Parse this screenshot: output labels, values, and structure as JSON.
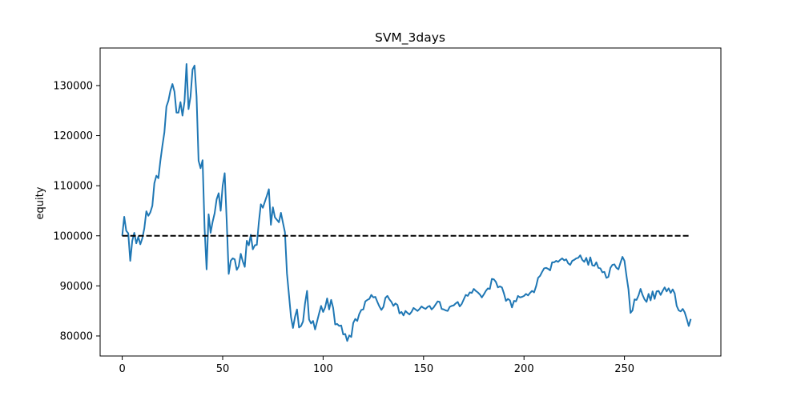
{
  "chart_data": {
    "type": "line",
    "title": "SVM_3days",
    "xlabel": "",
    "ylabel": "equity",
    "xlim": [
      -11,
      298
    ],
    "ylim": [
      76000,
      137500
    ],
    "xticks": [
      0,
      50,
      100,
      150,
      200,
      250
    ],
    "yticks": [
      80000,
      90000,
      100000,
      110000,
      120000,
      130000
    ],
    "grid": false,
    "legend": "none",
    "series": [
      {
        "color": "#1f77b4",
        "style": "solid",
        "points": [
          [
            0,
            100000
          ],
          [
            1,
            103800
          ],
          [
            2,
            101000
          ],
          [
            3,
            100500
          ],
          [
            4,
            95000
          ],
          [
            5,
            99000
          ],
          [
            6,
            100600
          ],
          [
            7,
            98500
          ],
          [
            8,
            99800
          ],
          [
            9,
            98300
          ],
          [
            10,
            99500
          ],
          [
            11,
            101500
          ],
          [
            12,
            104900
          ],
          [
            13,
            104000
          ],
          [
            14,
            104700
          ],
          [
            15,
            106000
          ],
          [
            16,
            110500
          ],
          [
            17,
            112000
          ],
          [
            18,
            111500
          ],
          [
            19,
            115000
          ],
          [
            20,
            118000
          ],
          [
            21,
            120700
          ],
          [
            22,
            125800
          ],
          [
            23,
            127000
          ],
          [
            24,
            129000
          ],
          [
            25,
            130300
          ],
          [
            26,
            128800
          ],
          [
            27,
            124600
          ],
          [
            28,
            124600
          ],
          [
            29,
            126700
          ],
          [
            30,
            124000
          ],
          [
            31,
            126800
          ],
          [
            32,
            134300
          ],
          [
            33,
            125300
          ],
          [
            34,
            127800
          ],
          [
            35,
            133200
          ],
          [
            36,
            134000
          ],
          [
            37,
            127800
          ],
          [
            38,
            115000
          ],
          [
            39,
            113500
          ],
          [
            40,
            115100
          ],
          [
            41,
            101500
          ],
          [
            42,
            93300
          ],
          [
            43,
            104300
          ],
          [
            44,
            100600
          ],
          [
            45,
            102800
          ],
          [
            46,
            104500
          ],
          [
            47,
            107300
          ],
          [
            48,
            108500
          ],
          [
            49,
            105000
          ],
          [
            50,
            110000
          ],
          [
            51,
            112500
          ],
          [
            52,
            103000
          ],
          [
            53,
            92400
          ],
          [
            54,
            95000
          ],
          [
            55,
            95500
          ],
          [
            56,
            95300
          ],
          [
            57,
            93200
          ],
          [
            58,
            93900
          ],
          [
            59,
            96400
          ],
          [
            60,
            94900
          ],
          [
            61,
            93800
          ],
          [
            62,
            99000
          ],
          [
            63,
            98100
          ],
          [
            64,
            100200
          ],
          [
            65,
            97300
          ],
          [
            66,
            98100
          ],
          [
            67,
            98200
          ],
          [
            68,
            102700
          ],
          [
            69,
            106300
          ],
          [
            70,
            105600
          ],
          [
            71,
            106800
          ],
          [
            72,
            108000
          ],
          [
            73,
            109300
          ],
          [
            74,
            102200
          ],
          [
            75,
            105700
          ],
          [
            76,
            103700
          ],
          [
            77,
            103200
          ],
          [
            78,
            102700
          ],
          [
            79,
            104600
          ],
          [
            80,
            102600
          ],
          [
            81,
            100700
          ],
          [
            82,
            92500
          ],
          [
            83,
            88200
          ],
          [
            84,
            83800
          ],
          [
            85,
            81600
          ],
          [
            86,
            83800
          ],
          [
            87,
            85300
          ],
          [
            88,
            81700
          ],
          [
            89,
            82000
          ],
          [
            90,
            82900
          ],
          [
            91,
            86500
          ],
          [
            92,
            89000
          ],
          [
            93,
            83300
          ],
          [
            94,
            82500
          ],
          [
            95,
            83000
          ],
          [
            96,
            81300
          ],
          [
            97,
            82900
          ],
          [
            98,
            84500
          ],
          [
            99,
            86000
          ],
          [
            100,
            84800
          ],
          [
            101,
            85700
          ],
          [
            102,
            87500
          ],
          [
            103,
            85300
          ],
          [
            104,
            87200
          ],
          [
            105,
            85600
          ],
          [
            106,
            82300
          ],
          [
            107,
            82400
          ],
          [
            108,
            82000
          ],
          [
            109,
            82100
          ],
          [
            110,
            80300
          ],
          [
            111,
            80400
          ],
          [
            112,
            79000
          ],
          [
            113,
            80100
          ],
          [
            114,
            79800
          ],
          [
            115,
            82600
          ],
          [
            116,
            83400
          ],
          [
            117,
            83000
          ],
          [
            118,
            84400
          ],
          [
            119,
            85200
          ],
          [
            120,
            85300
          ],
          [
            121,
            86900
          ],
          [
            122,
            87200
          ],
          [
            123,
            87400
          ],
          [
            124,
            88200
          ],
          [
            125,
            87700
          ],
          [
            126,
            87800
          ],
          [
            127,
            86800
          ],
          [
            128,
            85900
          ],
          [
            129,
            85200
          ],
          [
            130,
            85800
          ],
          [
            131,
            87600
          ],
          [
            132,
            88000
          ],
          [
            133,
            87300
          ],
          [
            134,
            86800
          ],
          [
            135,
            86000
          ],
          [
            136,
            86500
          ],
          [
            137,
            86200
          ],
          [
            138,
            84500
          ],
          [
            139,
            84800
          ],
          [
            140,
            84100
          ],
          [
            141,
            85000
          ],
          [
            142,
            84600
          ],
          [
            143,
            84300
          ],
          [
            144,
            84800
          ],
          [
            145,
            85600
          ],
          [
            146,
            85300
          ],
          [
            147,
            85000
          ],
          [
            148,
            85400
          ],
          [
            149,
            85900
          ],
          [
            150,
            85600
          ],
          [
            151,
            85400
          ],
          [
            152,
            85800
          ],
          [
            153,
            86000
          ],
          [
            154,
            85300
          ],
          [
            155,
            85700
          ],
          [
            156,
            86300
          ],
          [
            157,
            86900
          ],
          [
            158,
            86800
          ],
          [
            159,
            85400
          ],
          [
            160,
            85300
          ],
          [
            161,
            85100
          ],
          [
            162,
            85000
          ],
          [
            163,
            85800
          ],
          [
            164,
            86000
          ],
          [
            165,
            86100
          ],
          [
            166,
            86500
          ],
          [
            167,
            86800
          ],
          [
            168,
            85900
          ],
          [
            169,
            86400
          ],
          [
            170,
            87300
          ],
          [
            171,
            88200
          ],
          [
            172,
            88000
          ],
          [
            173,
            88700
          ],
          [
            174,
            88600
          ],
          [
            175,
            89400
          ],
          [
            176,
            89000
          ],
          [
            177,
            88700
          ],
          [
            178,
            88300
          ],
          [
            179,
            87700
          ],
          [
            180,
            88300
          ],
          [
            181,
            89000
          ],
          [
            182,
            89500
          ],
          [
            183,
            89400
          ],
          [
            184,
            91400
          ],
          [
            185,
            91300
          ],
          [
            186,
            90800
          ],
          [
            187,
            89700
          ],
          [
            188,
            89900
          ],
          [
            189,
            89700
          ],
          [
            190,
            88500
          ],
          [
            191,
            87000
          ],
          [
            192,
            87400
          ],
          [
            193,
            87100
          ],
          [
            194,
            85700
          ],
          [
            195,
            87000
          ],
          [
            196,
            86900
          ],
          [
            197,
            88000
          ],
          [
            198,
            87700
          ],
          [
            199,
            87800
          ],
          [
            200,
            88000
          ],
          [
            201,
            88400
          ],
          [
            202,
            88100
          ],
          [
            203,
            88600
          ],
          [
            204,
            89000
          ],
          [
            205,
            88700
          ],
          [
            206,
            89900
          ],
          [
            207,
            91600
          ],
          [
            208,
            92000
          ],
          [
            209,
            92800
          ],
          [
            210,
            93500
          ],
          [
            211,
            93600
          ],
          [
            212,
            93400
          ],
          [
            213,
            93100
          ],
          [
            214,
            94700
          ],
          [
            215,
            94700
          ],
          [
            216,
            95000
          ],
          [
            217,
            94800
          ],
          [
            218,
            95200
          ],
          [
            219,
            95500
          ],
          [
            220,
            95100
          ],
          [
            221,
            95300
          ],
          [
            222,
            94500
          ],
          [
            223,
            94200
          ],
          [
            224,
            95000
          ],
          [
            225,
            95200
          ],
          [
            226,
            95500
          ],
          [
            227,
            95600
          ],
          [
            228,
            96100
          ],
          [
            229,
            95200
          ],
          [
            230,
            94800
          ],
          [
            231,
            95600
          ],
          [
            232,
            94200
          ],
          [
            233,
            95700
          ],
          [
            234,
            94100
          ],
          [
            235,
            94000
          ],
          [
            236,
            94700
          ],
          [
            237,
            93600
          ],
          [
            238,
            93500
          ],
          [
            239,
            92700
          ],
          [
            240,
            92800
          ],
          [
            241,
            91600
          ],
          [
            242,
            91800
          ],
          [
            243,
            93600
          ],
          [
            244,
            94200
          ],
          [
            245,
            94300
          ],
          [
            246,
            93600
          ],
          [
            247,
            93300
          ],
          [
            248,
            94600
          ],
          [
            249,
            95800
          ],
          [
            250,
            95000
          ],
          [
            251,
            92000
          ],
          [
            252,
            89300
          ],
          [
            253,
            84600
          ],
          [
            254,
            85100
          ],
          [
            255,
            87300
          ],
          [
            256,
            87200
          ],
          [
            257,
            88100
          ],
          [
            258,
            89400
          ],
          [
            259,
            88200
          ],
          [
            260,
            87300
          ],
          [
            261,
            86800
          ],
          [
            262,
            88400
          ],
          [
            263,
            87100
          ],
          [
            264,
            88900
          ],
          [
            265,
            87400
          ],
          [
            266,
            88900
          ],
          [
            267,
            89000
          ],
          [
            268,
            88200
          ],
          [
            269,
            89000
          ],
          [
            270,
            89700
          ],
          [
            271,
            88900
          ],
          [
            272,
            89500
          ],
          [
            273,
            88600
          ],
          [
            274,
            89300
          ],
          [
            275,
            88500
          ],
          [
            276,
            86000
          ],
          [
            277,
            85100
          ],
          [
            278,
            84900
          ],
          [
            279,
            85400
          ],
          [
            280,
            84700
          ],
          [
            281,
            83400
          ],
          [
            282,
            82000
          ],
          [
            283,
            83400
          ]
        ]
      },
      {
        "color": "#000000",
        "style": "dashed",
        "points": [
          [
            0,
            100000
          ],
          [
            283,
            100000
          ]
        ]
      }
    ]
  }
}
